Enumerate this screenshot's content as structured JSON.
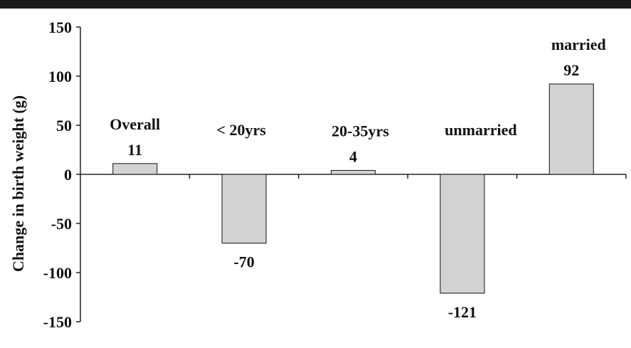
{
  "chart_data": {
    "type": "bar",
    "categories": [
      "Overall",
      "< 20yrs",
      "20-35yrs",
      "unmarried",
      "married"
    ],
    "values": [
      11,
      -70,
      4,
      -121,
      92
    ],
    "value_labels": [
      "11",
      "-70",
      "4",
      "-121",
      "92"
    ],
    "title": "",
    "xlabel": "",
    "ylabel": "Change in birth weight (g)",
    "ylim": [
      -150,
      150
    ],
    "yticks": [
      150,
      100,
      50,
      0,
      -50,
      -100,
      -150
    ],
    "grid": false,
    "legend": "none",
    "bar_color": "#d3d3d3",
    "bar_stroke": "#333333"
  }
}
